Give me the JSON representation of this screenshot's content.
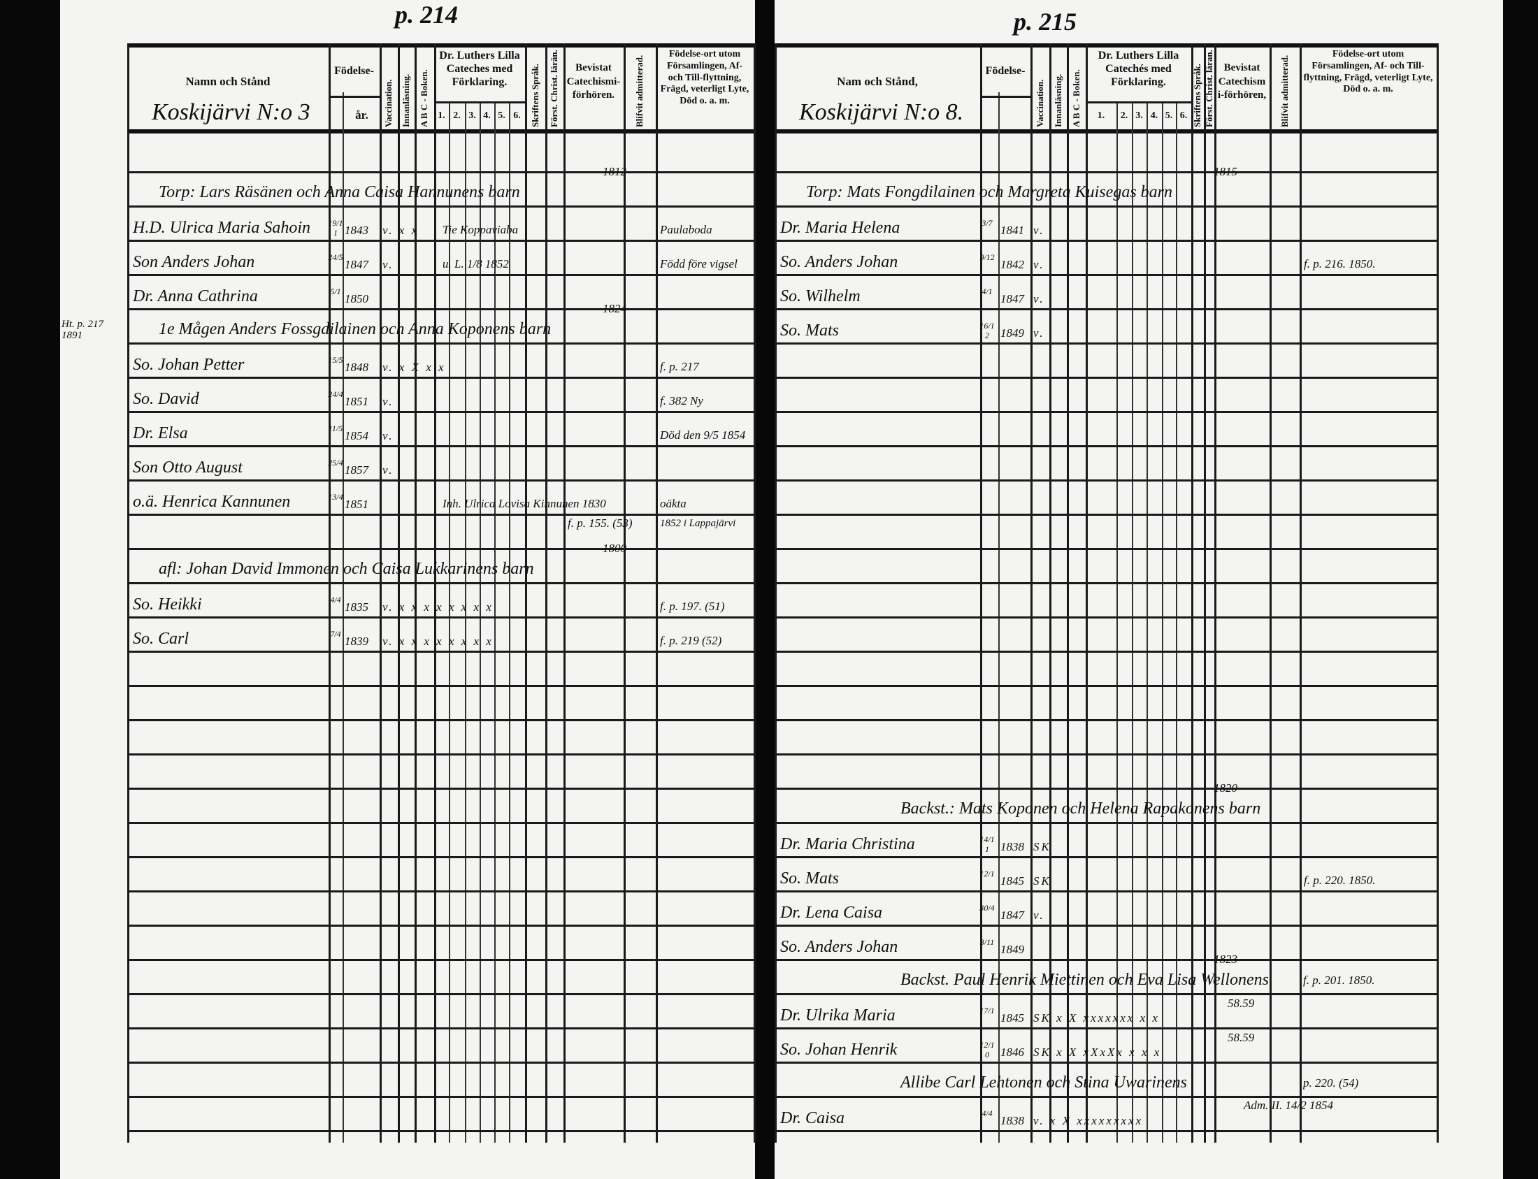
{
  "document": {
    "pages": [
      {
        "page_number": "p. 214",
        "header": {
          "name_col": "Namn och Stånd",
          "village": "Koskijärvi N:o 3",
          "birth_col": "Födelse-",
          "birth_year": "år.",
          "vaccination": "Vaccination.",
          "innanlasning": "Innanläsning.",
          "abc": "A B C - Boken.",
          "luther": "Dr. Luthers Lilla Cateches med Förklaring.",
          "luther_parts": [
            "1.",
            "2.",
            "3.",
            "4.",
            "5.",
            "6."
          ],
          "skriftens": "Skriftens Språk.",
          "forst_christ": "Först. Christ. lärän.",
          "bevistat": "Bevistat Catechismi-förhören.",
          "blifvit": "Blifvit admitterad.",
          "fodelseort": "Födelse-ort utom Församlingen, Af- och Till-flyttning, Frägd, veterligt Lyte, Död o. a. m."
        },
        "entries": [
          {
            "type": "household",
            "text": "Torp: Lars Räsänen och Anna Caisa Hannunens barn",
            "year_note": "1812"
          },
          {
            "type": "person",
            "name": "H.D. Ulrica Maria Sahoin",
            "date": "19/11",
            "year": "1843",
            "marks": "v. x x",
            "mid_note": "Tie Koppaviaba",
            "note": "Paulaboda"
          },
          {
            "type": "person",
            "name": "Son Anders Johan",
            "date": "24/5",
            "year": "1847",
            "marks": "v.",
            "mid_note": "u. L. 1/8 1852",
            "note": "Född före vigsel"
          },
          {
            "type": "person",
            "name": "Dr. Anna Cathrina",
            "date": "5/1",
            "year": "1850"
          },
          {
            "type": "household",
            "text": "1e Mågen Anders Fossgdilainen och Anna Koponens barn",
            "year_note": "1824",
            "margin_note": "Ht. p. 217 1891"
          },
          {
            "type": "person",
            "name": "So. Johan Petter",
            "date": "15/5",
            "year": "1848",
            "marks": "v. x X x x",
            "note": "f. p. 217"
          },
          {
            "type": "person",
            "name": "So. David",
            "date": "24/4",
            "year": "1851",
            "marks": "v.",
            "note": "f. 382 Ny"
          },
          {
            "type": "person",
            "name": "Dr. Elsa",
            "date": "11/5",
            "year": "1854",
            "marks": "v.",
            "note": "Död den 9/5 1854"
          },
          {
            "type": "person",
            "name": "Son Otto August",
            "date": "25/4",
            "year": "1857",
            "marks": "v."
          },
          {
            "type": "person",
            "name": "o.ä. Henrica Kannunen",
            "date": "13/4",
            "year": "1851",
            "mid_note": "Inh. Ulrica Lovisa Kinnunen 1830",
            "mid_note2": "f. p. 155. (53)",
            "note": "oäkta",
            "note2": "1852 i Lappajärvi"
          },
          {
            "type": "household",
            "text": "afl: Johan David Immonen och Caisa Lukkarinens barn",
            "year_note": "1800"
          },
          {
            "type": "person",
            "name": "So. Heikki",
            "date": "4/4",
            "year": "1835",
            "marks": "v. x x x x x x x x",
            "note": "f. p. 197. (51)"
          },
          {
            "type": "person",
            "name": "So. Carl",
            "date": "7/4",
            "year": "1839",
            "marks": "v. x x x x x x x x",
            "note": "f. p. 219 (52)"
          }
        ]
      },
      {
        "page_number": "p. 215",
        "header": {
          "name_col": "Nam och Stånd,",
          "village": "Koskijärvi N:o 8.",
          "birth_col": "Födelse-",
          "vaccination": "Vaccination.",
          "innanlasning": "Innanläsning.",
          "abc": "A B C - Boken.",
          "luther": "Dr. Luthers Lilla Catechés med Förklaring.",
          "luther_parts": [
            "1.",
            "2.",
            "3.",
            "4.",
            "5.",
            "6."
          ],
          "skriftens": "Skriftens Språk.",
          "forst_christ": "Först. Christ. läran.",
          "bevistat": "Bevistat Catechismi-förhören,",
          "blifvit": "Blifvit admitterad.",
          "fodelseort": "Födelse-ort utom Församlingen, Af- och Till-flyttning, Frägd, veterligt Lyte, Död o. a. m."
        },
        "entries": [
          {
            "type": "household",
            "text": "Torp: Mats Fongdilainen och Margreta Kuisegas barn",
            "year_note": "1815"
          },
          {
            "type": "person",
            "name": "Dr. Maria Helena",
            "date": "3/7",
            "year": "1841",
            "marks": "v."
          },
          {
            "type": "person",
            "name": "So. Anders Johan",
            "date": "9/12",
            "year": "1842",
            "marks": "v.",
            "note": "f. p. 216. 1850."
          },
          {
            "type": "person",
            "name": "So. Wilhelm",
            "date": "4/1",
            "year": "1847",
            "marks": "v."
          },
          {
            "type": "person",
            "name": "So. Mats",
            "date": "16/12",
            "year": "1849",
            "marks": "v."
          },
          {
            "type": "household",
            "text": "Backst.: Mats Koponen och Helena Rapakonens barn",
            "year_note": "1820"
          },
          {
            "type": "person",
            "name": "Dr. Maria Christina",
            "date": "14/11",
            "year": "1838",
            "marks": "SK"
          },
          {
            "type": "person",
            "name": "So. Mats",
            "date": "12/1",
            "year": "1845",
            "marks": "SK",
            "note": "f. p. 220. 1850."
          },
          {
            "type": "person",
            "name": "Dr. Lena Caisa",
            "date": "30/4",
            "year": "1847",
            "marks": "v."
          },
          {
            "type": "person",
            "name": "So. Anders Johan",
            "date": "3/11",
            "year": "1849"
          },
          {
            "type": "household",
            "text": "Backst. Paul Henrik Miettinen och Eva Lisa Wellonens",
            "year_note": "1823",
            "note": "f. p. 201. 1850."
          },
          {
            "type": "person",
            "name": "Dr. Ulrika Maria",
            "date": "17/1",
            "year": "1845",
            "marks": "SK x X xxxxxxx x x",
            "mid_note": "58.59"
          },
          {
            "type": "person",
            "name": "So. Johan Henrik",
            "date": "12/10",
            "year": "1846",
            "marks": "SK x X xXxXx x x x",
            "mid_note": "58.59"
          },
          {
            "type": "household",
            "text": "Allibe Carl Lehtonen och Stina Uwarinens",
            "note": "p. 220. (54)",
            "note2": "Adm. II. 14/2 1854"
          },
          {
            "type": "person",
            "name": "Dr. Caisa",
            "date": "4/4",
            "year": "1838",
            "marks": "v. x X xxxxxxxxx"
          }
        ]
      }
    ]
  }
}
